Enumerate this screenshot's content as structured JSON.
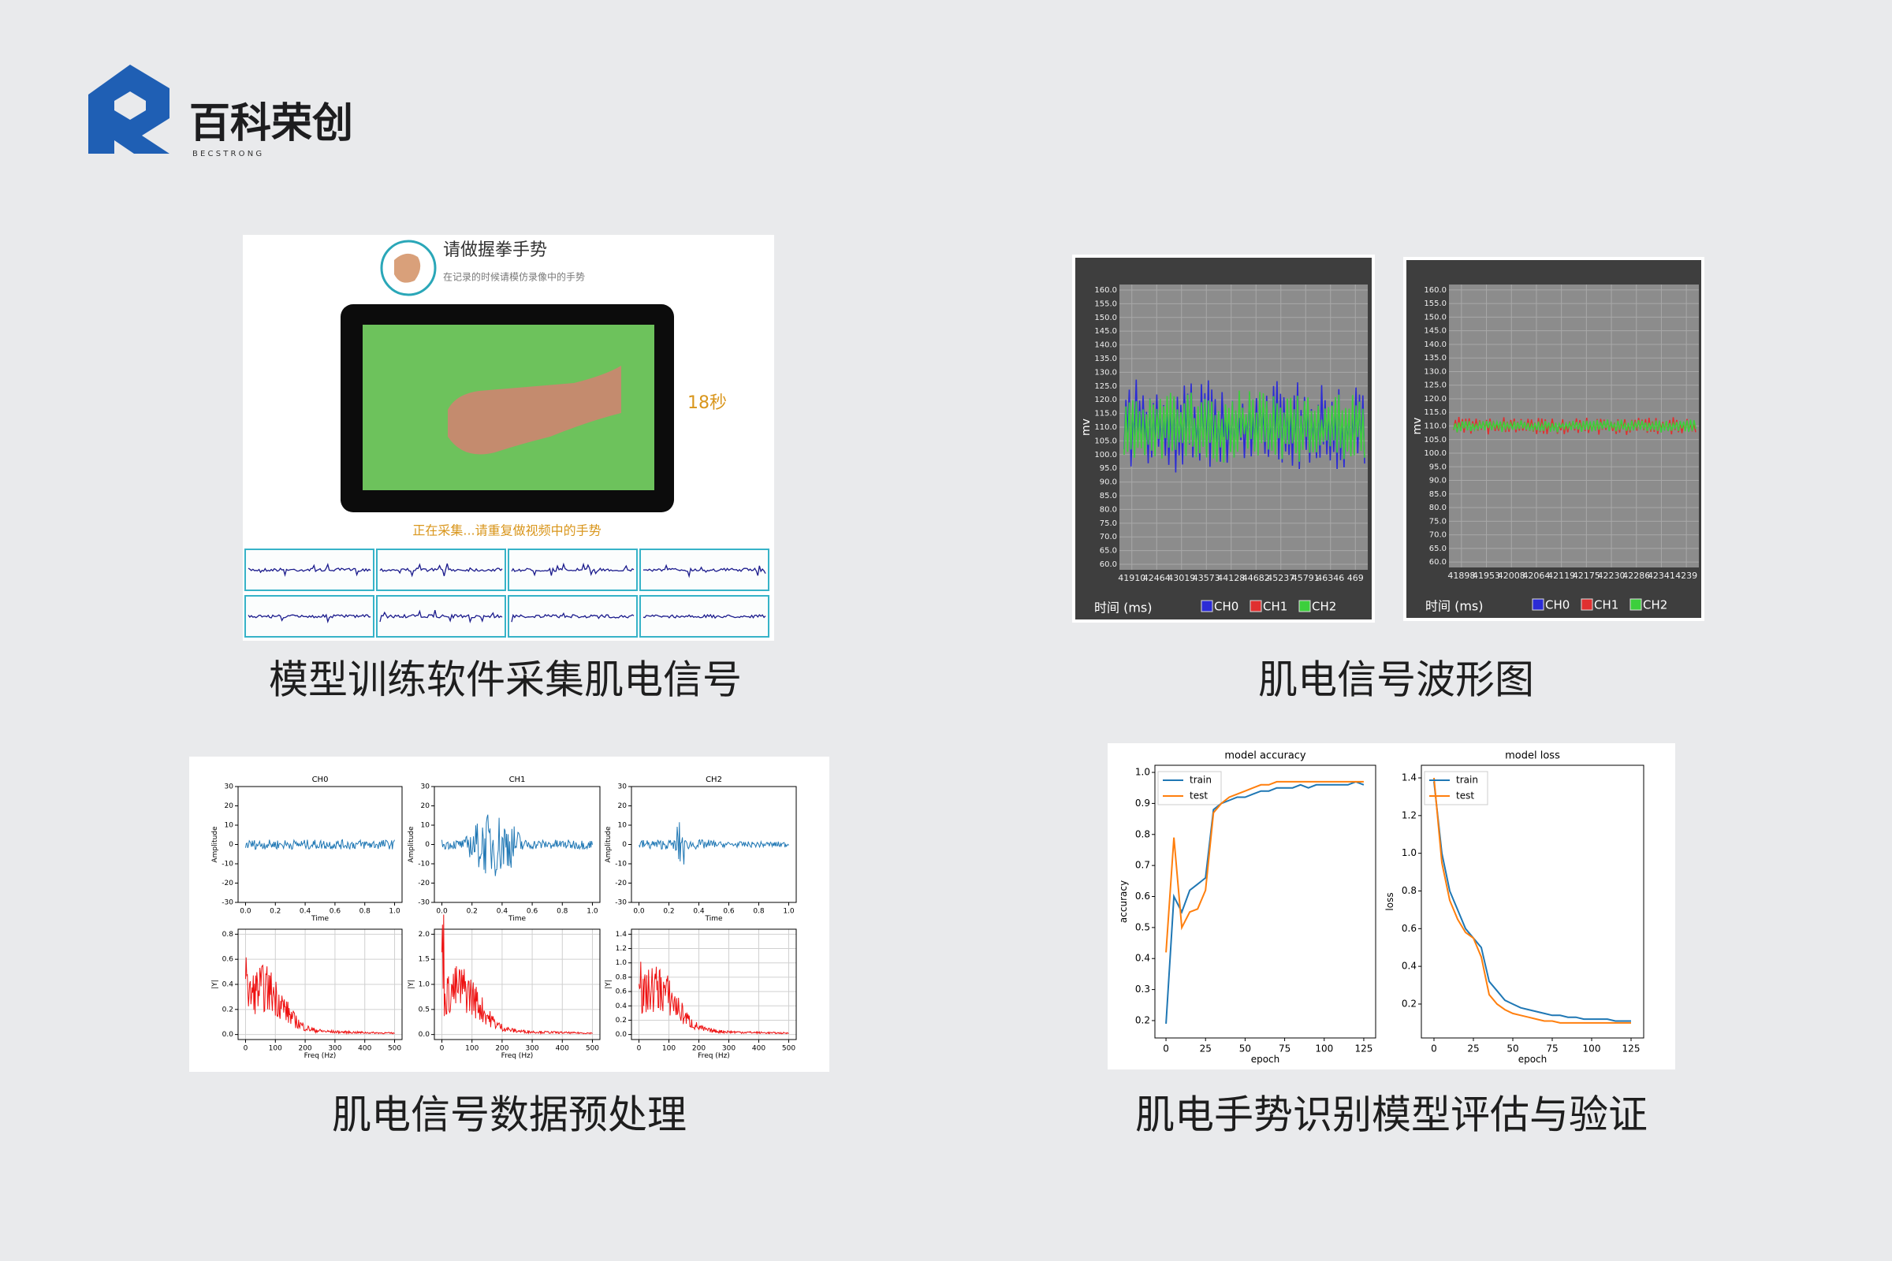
{
  "logo": {
    "name": "百科荣创",
    "subtitle": "B E C S T R O N G"
  },
  "capture": {
    "prompt": "请做握拳手势",
    "hint": "在记录的时候请模仿录像中的手势",
    "timer": "18秒",
    "status": "正在采集...请重复做视频中的手势",
    "caption": "模型训练软件采集肌电信号"
  },
  "waveform": {
    "caption": "肌电信号波形图",
    "charts": [
      {
        "ylabel": "mv",
        "xlabel": "时间 (ms)",
        "ylim": [
          58,
          162
        ],
        "yticks": [
          {
            "value": 60,
            "label": "60.0"
          },
          {
            "value": 65,
            "label": "65.0"
          },
          {
            "value": 70,
            "label": "70.0"
          },
          {
            "value": 75,
            "label": "75.0"
          },
          {
            "value": 80,
            "label": "80.0"
          },
          {
            "value": 85,
            "label": "85.0"
          },
          {
            "value": 90,
            "label": "90.0"
          },
          {
            "value": 95,
            "label": "95.0"
          },
          {
            "value": 100,
            "label": "100.0"
          },
          {
            "value": 105,
            "label": "105.0"
          },
          {
            "value": 110,
            "label": "110.0"
          },
          {
            "value": 115,
            "label": "115.0"
          },
          {
            "value": 120,
            "label": "120.0"
          },
          {
            "value": 125,
            "label": "125.0"
          },
          {
            "value": 130,
            "label": "130.0"
          },
          {
            "value": 135,
            "label": "135.0"
          },
          {
            "value": 140,
            "label": "140.0"
          },
          {
            "value": 145,
            "label": "145.0"
          },
          {
            "value": 150,
            "label": "150.0"
          },
          {
            "value": 155,
            "label": "155.0"
          },
          {
            "value": 160,
            "label": "160.0"
          }
        ],
        "xlabels": [
          "41910",
          "42464",
          "43019",
          "43573",
          "44128",
          "44682",
          "45237",
          "45791",
          "46346",
          "469"
        ],
        "legend": [
          {
            "name": "CH0",
            "color": "#2b2bd6"
          },
          {
            "name": "CH1",
            "color": "#e03030"
          },
          {
            "name": "CH2",
            "color": "#3ccf3c"
          }
        ]
      },
      {
        "ylabel": "mv",
        "xlabel": "时间 (ms)",
        "ylim": [
          58,
          162
        ],
        "yticks": [
          {
            "value": 60,
            "label": "60.0"
          },
          {
            "value": 65,
            "label": "65.0"
          },
          {
            "value": 70,
            "label": "70.0"
          },
          {
            "value": 75,
            "label": "75.0"
          },
          {
            "value": 80,
            "label": "80.0"
          },
          {
            "value": 85,
            "label": "85.0"
          },
          {
            "value": 90,
            "label": "90.0"
          },
          {
            "value": 95,
            "label": "95.0"
          },
          {
            "value": 100,
            "label": "100.0"
          },
          {
            "value": 105,
            "label": "105.0"
          },
          {
            "value": 110,
            "label": "110.0"
          },
          {
            "value": 115,
            "label": "115.0"
          },
          {
            "value": 120,
            "label": "120.0"
          },
          {
            "value": 125,
            "label": "125.0"
          },
          {
            "value": 130,
            "label": "130.0"
          },
          {
            "value": 135,
            "label": "135.0"
          },
          {
            "value": 140,
            "label": "140.0"
          },
          {
            "value": 145,
            "label": "145.0"
          },
          {
            "value": 150,
            "label": "150.0"
          },
          {
            "value": 155,
            "label": "155.0"
          },
          {
            "value": 160,
            "label": "160.0"
          }
        ],
        "xlabels": [
          "41898",
          "41953",
          "42008",
          "42064",
          "42119",
          "42175",
          "42230",
          "42286",
          "42341",
          "4239"
        ],
        "legend": [
          {
            "name": "CH0",
            "color": "#2b2bd6"
          },
          {
            "name": "CH1",
            "color": "#e03030"
          },
          {
            "name": "CH2",
            "color": "#3ccf3c"
          }
        ]
      }
    ]
  },
  "preprocess": {
    "caption": "肌电信号数据预处理",
    "plots": [
      {
        "title": "CH0",
        "xlabel": "Time",
        "ylabel": "Amplitude",
        "xlim": [
          -0.05,
          1.05
        ],
        "ylim": [
          -30,
          30
        ],
        "xticks": [
          {
            "value": 0,
            "label": "0.0"
          },
          0.2,
          0.4,
          0.6,
          0.8,
          {
            "value": 1,
            "label": "1.0"
          }
        ],
        "yticks": [
          30,
          20,
          10,
          0,
          -10,
          -20,
          -30
        ],
        "grid": false
      },
      {
        "title": "CH1",
        "xlabel": "Time",
        "ylabel": "Amplitude",
        "xlim": [
          -0.05,
          1.05
        ],
        "ylim": [
          -30,
          30
        ],
        "xticks": [
          {
            "value": 0,
            "label": "0.0"
          },
          0.2,
          0.4,
          0.6,
          0.8,
          {
            "value": 1,
            "label": "1.0"
          }
        ],
        "yticks": [
          30,
          20,
          10,
          0,
          -10,
          -20,
          -30
        ],
        "grid": false
      },
      {
        "title": "CH2",
        "xlabel": "Time",
        "ylabel": "Amplitude",
        "xlim": [
          -0.05,
          1.05
        ],
        "ylim": [
          -30,
          30
        ],
        "xticks": [
          {
            "value": 0,
            "label": "0.0"
          },
          0.2,
          0.4,
          0.6,
          0.8,
          {
            "value": 1,
            "label": "1.0"
          }
        ],
        "yticks": [
          30,
          20,
          10,
          0,
          -10,
          -20,
          -30
        ],
        "grid": false
      },
      {
        "xlabel": "Freq (Hz)",
        "ylabel": "|Y|",
        "xlim": [
          -25,
          525
        ],
        "ylim": [
          -0.04,
          0.84
        ],
        "xticks": [
          0,
          100,
          200,
          300,
          400,
          500
        ],
        "yticks": [
          {
            "value": 0,
            "label": "0.0"
          },
          0.2,
          0.4,
          0.6,
          0.8
        ],
        "grid": true
      },
      {
        "xlabel": "Freq (Hz)",
        "ylabel": "|Y|",
        "xlim": [
          -25,
          525
        ],
        "ylim": [
          -0.1,
          2.1
        ],
        "xticks": [
          0,
          100,
          200,
          300,
          400,
          500
        ],
        "yticks": [
          {
            "value": 0,
            "label": "0.0"
          },
          0.5,
          {
            "value": 1,
            "label": "1.0"
          },
          1.5,
          {
            "value": 2,
            "label": "2.0"
          }
        ],
        "grid": true
      },
      {
        "xlabel": "Freq (Hz)",
        "ylabel": "|Y|",
        "xlim": [
          -25,
          525
        ],
        "ylim": [
          -0.07,
          1.47
        ],
        "xticks": [
          0,
          100,
          200,
          300,
          400,
          500
        ],
        "yticks": [
          {
            "value": 0,
            "label": "0.0"
          },
          0.2,
          0.4,
          0.6,
          0.8,
          {
            "value": 1,
            "label": "1.0"
          },
          1.2,
          1.4
        ],
        "grid": true
      }
    ]
  },
  "evaluation": {
    "caption": "肌电手势识别模型评估与验证",
    "charts": [
      {
        "type": "line",
        "title": "model accuracy",
        "xlabel": "epoch",
        "ylabel": "accuracy",
        "xlim": [
          -7,
          132.5
        ],
        "ylim": [
          0.144,
          1.023
        ],
        "xticks": [
          0,
          25,
          50,
          75,
          100,
          125
        ],
        "yticks": [
          0.2,
          0.3,
          0.4,
          0.5,
          0.6,
          0.7,
          0.8,
          0.9,
          {
            "value": 1,
            "label": "1.0"
          }
        ],
        "x": [
          0,
          5,
          10,
          15,
          20,
          25,
          30,
          35,
          40,
          45,
          50,
          55,
          60,
          65,
          70,
          75,
          80,
          85,
          90,
          95,
          100,
          105,
          110,
          115,
          120,
          125
        ],
        "series": [
          {
            "name": "train",
            "color": "#1f77b4",
            "values": [
              0.19,
              0.6,
              0.55,
              0.62,
              0.64,
              0.66,
              0.88,
              0.9,
              0.91,
              0.92,
              0.92,
              0.93,
              0.94,
              0.94,
              0.95,
              0.95,
              0.95,
              0.96,
              0.95,
              0.96,
              0.96,
              0.96,
              0.96,
              0.96,
              0.97,
              0.96
            ]
          },
          {
            "name": "test",
            "color": "#ff7f0e",
            "values": [
              0.42,
              0.79,
              0.5,
              0.55,
              0.56,
              0.62,
              0.87,
              0.9,
              0.92,
              0.93,
              0.94,
              0.95,
              0.96,
              0.96,
              0.97,
              0.97,
              0.97,
              0.97,
              0.97,
              0.97,
              0.97,
              0.97,
              0.97,
              0.97,
              0.97,
              0.97
            ]
          }
        ]
      },
      {
        "type": "line",
        "title": "model loss",
        "xlabel": "epoch",
        "ylabel": "loss",
        "xlim": [
          -8,
          133
        ],
        "ylim": [
          0.02,
          1.467
        ],
        "xticks": [
          0,
          25,
          50,
          75,
          100,
          125
        ],
        "yticks": [
          0.2,
          0.4,
          0.6,
          0.8,
          {
            "value": 1,
            "label": "1.0"
          },
          1.2,
          1.4
        ],
        "x": [
          0,
          5,
          10,
          15,
          20,
          25,
          30,
          35,
          40,
          45,
          50,
          55,
          60,
          65,
          70,
          75,
          80,
          85,
          90,
          95,
          100,
          105,
          110,
          115,
          120,
          125
        ],
        "series": [
          {
            "name": "train",
            "color": "#1f77b4",
            "values": [
              1.38,
              1.0,
              0.8,
              0.7,
              0.6,
              0.55,
              0.5,
              0.32,
              0.27,
              0.22,
              0.2,
              0.18,
              0.17,
              0.16,
              0.15,
              0.14,
              0.14,
              0.13,
              0.13,
              0.12,
              0.12,
              0.12,
              0.12,
              0.11,
              0.11,
              0.11
            ]
          },
          {
            "name": "test",
            "color": "#ff7f0e",
            "values": [
              1.4,
              0.95,
              0.75,
              0.65,
              0.58,
              0.55,
              0.45,
              0.25,
              0.2,
              0.17,
              0.15,
              0.14,
              0.13,
              0.12,
              0.11,
              0.11,
              0.1,
              0.1,
              0.1,
              0.1,
              0.1,
              0.1,
              0.1,
              0.1,
              0.1,
              0.1
            ]
          }
        ]
      }
    ]
  }
}
